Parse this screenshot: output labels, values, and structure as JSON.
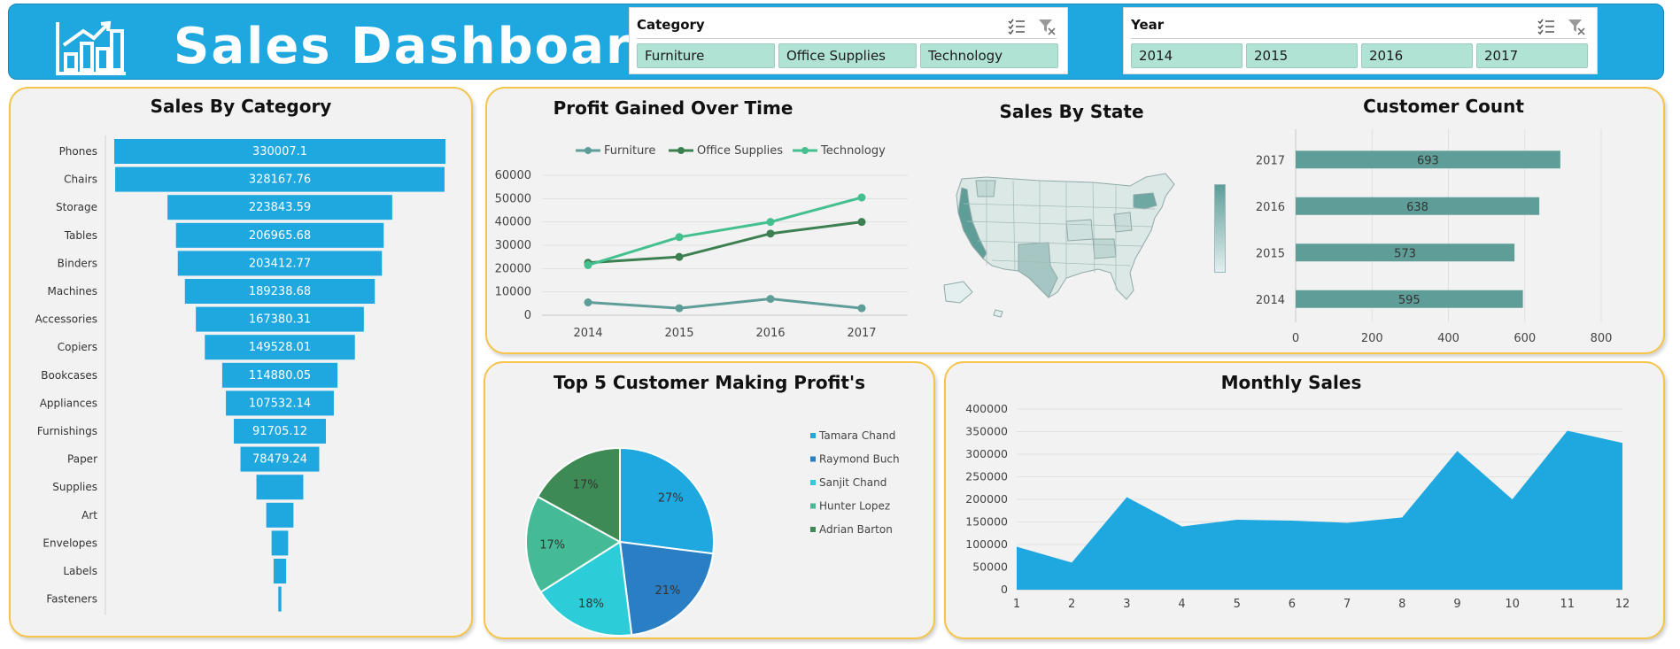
{
  "header": {
    "title": "Sales Dashboard",
    "bg_color": "#1fa8e0",
    "logo_icon": "bar-chart-icon"
  },
  "slicers": {
    "category": {
      "title": "Category",
      "items": [
        "Furniture",
        "Office Supplies",
        "Technology"
      ],
      "icons": [
        "multi-select-icon",
        "clear-filter-icon"
      ]
    },
    "year": {
      "title": "Year",
      "items": [
        "2014",
        "2015",
        "2016",
        "2017"
      ],
      "icons": [
        "multi-select-icon",
        "clear-filter-icon"
      ]
    }
  },
  "colors": {
    "primary_blue": "#1fa8e0",
    "teal": "#5f9e98",
    "panel_border": "#f4c54a",
    "chip_bg": "#b1e3d5"
  },
  "charts": {
    "sales_by_category": {
      "title": "Sales By Category",
      "chart_data": {
        "type": "bar",
        "orientation": "horizontal-funnel",
        "categories": [
          "Phones",
          "Chairs",
          "Storage",
          "Tables",
          "Binders",
          "Machines",
          "Accessories",
          "Copiers",
          "Bookcases",
          "Appliances",
          "Furnishings",
          "Paper",
          "Supplies",
          "Art",
          "Envelopes",
          "Labels",
          "Fasteners"
        ],
        "values": [
          330007.1,
          328167.76,
          223843.59,
          206965.68,
          203412.77,
          189238.68,
          167380.31,
          149528.01,
          114880.05,
          107532.14,
          91705.12,
          78479.24,
          46673.54,
          27118.79,
          16476.4,
          12486.31,
          3024.28
        ],
        "labels": [
          "330007.1",
          "328167.76",
          "223843.59",
          "206965.68",
          "203412.77",
          "189238.68",
          "167380.31",
          "149528.01",
          "114880.05",
          "107532.14",
          "91705.12",
          "78479.24",
          "",
          "",
          "",
          "",
          ""
        ],
        "color": "#1fa8e0"
      }
    },
    "profit_over_time": {
      "title": "Profit Gained Over Time",
      "chart_data": {
        "type": "line",
        "x": [
          "2014",
          "2015",
          "2016",
          "2017"
        ],
        "series": [
          {
            "name": "Furniture",
            "values": [
              5500,
              3000,
              7000,
              3000
            ],
            "color": "#5f9e98"
          },
          {
            "name": "Office Supplies",
            "values": [
              22500,
              25000,
              35000,
              40000
            ],
            "color": "#3c8052"
          },
          {
            "name": "Technology",
            "values": [
              21500,
              33500,
              40000,
              50500
            ],
            "color": "#44c08f"
          }
        ],
        "yticks": [
          0,
          10000,
          20000,
          30000,
          40000,
          50000,
          60000
        ],
        "ylim": [
          0,
          60000
        ],
        "legend": "top"
      }
    },
    "sales_by_state": {
      "title": "Sales By State",
      "legend_colors": [
        "#5f9e98",
        "#e3efee"
      ]
    },
    "customer_count": {
      "title": "Customer Count",
      "chart_data": {
        "type": "bar",
        "orientation": "horizontal",
        "categories": [
          "2017",
          "2016",
          "2015",
          "2014"
        ],
        "values": [
          693,
          638,
          573,
          595
        ],
        "xticks": [
          0,
          200,
          400,
          600,
          800
        ],
        "xlim": [
          0,
          800
        ],
        "color": "#5f9e98"
      }
    },
    "top5_customers": {
      "title": "Top 5 Customer Making Profit's",
      "chart_data": {
        "type": "pie",
        "labels": [
          "Tamara Chand",
          "Raymond Buch",
          "Sanjit Chand",
          "Hunter Lopez",
          "Adrian Barton"
        ],
        "values": [
          27,
          21,
          18,
          17,
          17
        ],
        "value_labels": [
          "27%",
          "21%",
          "18%",
          "17%",
          "17%"
        ],
        "colors": [
          "#1fa8e0",
          "#2a7fc4",
          "#2ccdd8",
          "#44bb96",
          "#3d8a55"
        ],
        "legend": "right"
      }
    },
    "monthly_sales": {
      "title": "Monthly Sales",
      "chart_data": {
        "type": "area",
        "x": [
          1,
          2,
          3,
          4,
          5,
          6,
          7,
          8,
          9,
          10,
          11,
          12
        ],
        "values": [
          95000,
          60000,
          205000,
          140000,
          155000,
          153000,
          148000,
          160000,
          307000,
          200000,
          352000,
          325000
        ],
        "yticks": [
          0,
          50000,
          100000,
          150000,
          200000,
          250000,
          300000,
          350000,
          400000
        ],
        "ylim": [
          0,
          400000
        ],
        "color": "#1fa8e0"
      }
    }
  }
}
